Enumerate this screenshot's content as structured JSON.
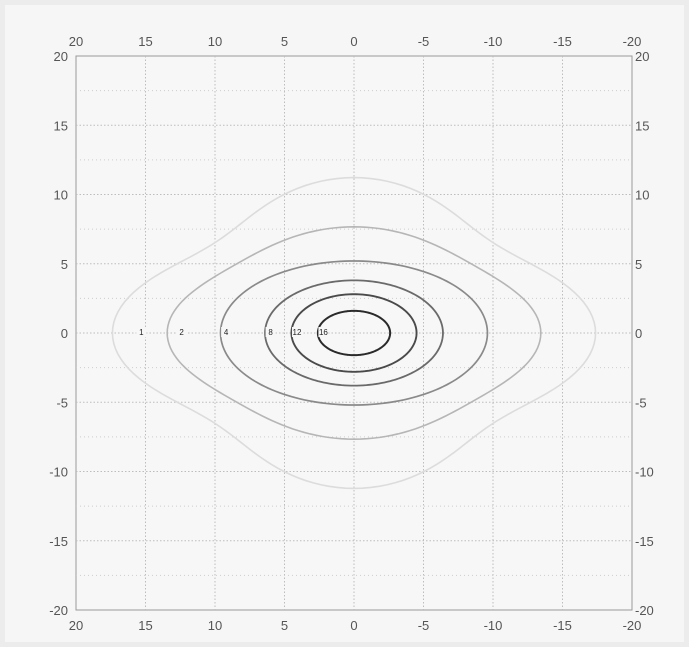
{
  "chart_data": {
    "type": "contour",
    "x_axis": {
      "range": [
        20,
        -20
      ],
      "ticks_bottom": [
        "20",
        "15",
        "10",
        "5",
        "0",
        "-5",
        "-10",
        "-15",
        "-20"
      ],
      "ticks_top": [
        "20",
        "15",
        "10",
        "5",
        "0",
        "-5",
        "-10",
        "-15",
        "-20"
      ]
    },
    "y_axis": {
      "range": [
        -20,
        20
      ],
      "ticks_left": [
        "20",
        "15",
        "10",
        "5",
        "0",
        "-5",
        "-10",
        "-15",
        "-20"
      ],
      "ticks_right": [
        "20",
        "15",
        "10",
        "5",
        "0",
        "-5",
        "-10",
        "-15",
        "-20"
      ]
    },
    "grid": true,
    "minor_grid": true,
    "contours": [
      {
        "level": "1",
        "rx": 15.8,
        "ry": 10.2,
        "lobes": 0.1,
        "label_x": 15.3,
        "color": "#dcdcdc",
        "width": 1.6
      },
      {
        "level": "2",
        "rx": 12.8,
        "ry": 7.3,
        "lobes": 0.05,
        "label_x": 12.4,
        "color": "#b6b6b6",
        "width": 1.6
      },
      {
        "level": "4",
        "rx": 9.6,
        "ry": 5.2,
        "lobes": 0.0,
        "label_x": 9.2,
        "color": "#8a8a8a",
        "width": 1.7
      },
      {
        "level": "8",
        "rx": 6.4,
        "ry": 3.8,
        "lobes": 0.0,
        "label_x": 6.0,
        "color": "#6a6a6a",
        "width": 1.8
      },
      {
        "level": "12",
        "rx": 4.5,
        "ry": 2.8,
        "lobes": 0.0,
        "label_x": 4.1,
        "color": "#4a4a4a",
        "width": 1.9
      },
      {
        "level": "16",
        "rx": 2.6,
        "ry": 1.6,
        "lobes": 0.0,
        "label_x": 2.2,
        "color": "#2a2a2a",
        "width": 2.0
      }
    ]
  }
}
